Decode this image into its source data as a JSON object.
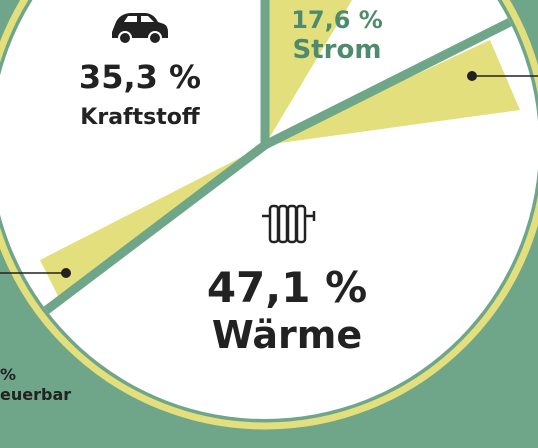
{
  "chart_data": {
    "type": "pie",
    "categories": [
      "Strom",
      "Wärme",
      "Kraftstoff"
    ],
    "values": [
      17.6,
      47.1,
      35.3
    ],
    "value_labels": [
      "17,6 %",
      "47,1 %",
      "35,3 %"
    ],
    "colors": [
      "#ffffff",
      "#ffffff",
      "#ffffff"
    ],
    "annotations": [
      "%",
      "euerbar"
    ]
  }
}
